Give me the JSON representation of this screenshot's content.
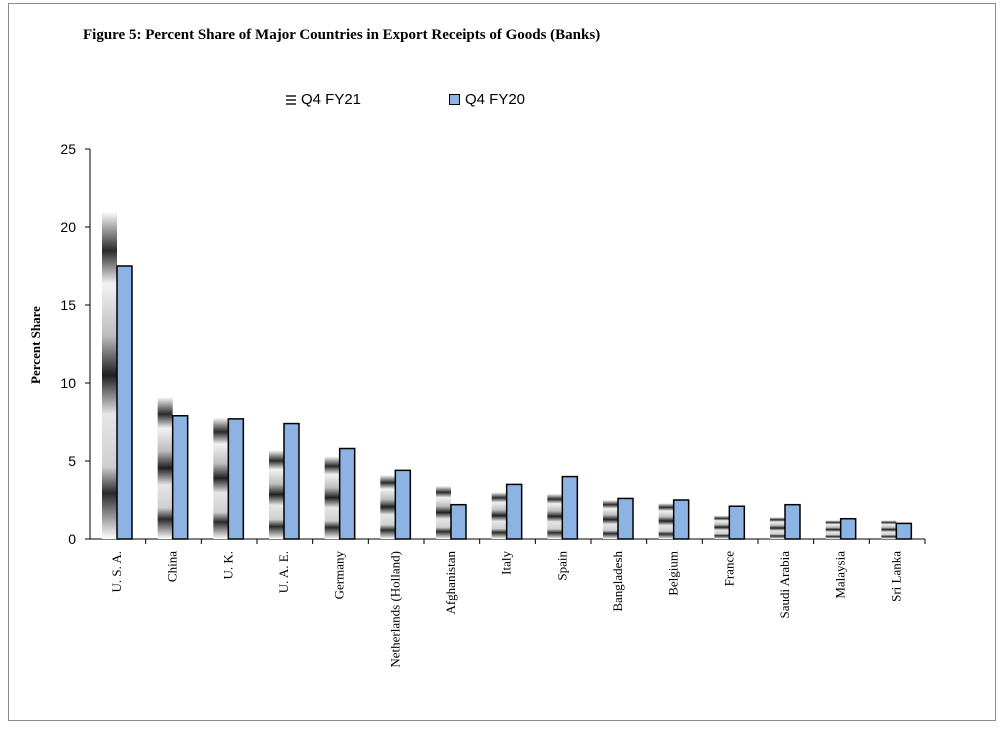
{
  "chart_data": {
    "type": "bar",
    "title": "Figure 5: Percent Share of Major Countries in Export Receipts of Goods  (Banks)",
    "xlabel": "",
    "ylabel": "Percent Share",
    "ylim": [
      0,
      25
    ],
    "yticks": [
      0,
      5,
      10,
      15,
      20,
      25
    ],
    "grid": false,
    "legend_position": "top",
    "categories": [
      "U. S. A.",
      "China",
      "U. K.",
      "U. A. E.",
      "Germany",
      "Netherlands (Holland)",
      "Afghanistan",
      "Italy",
      "Spain",
      "Bangladesh",
      "Belgium",
      "France",
      "Saudi Arabia",
      "Malaysia",
      "Sri Lanka"
    ],
    "series": [
      {
        "name": "Q4 FY21",
        "color": "#9a9a9a",
        "pattern": "gradient-bands",
        "values": [
          21.0,
          9.1,
          7.8,
          5.7,
          5.3,
          4.1,
          3.4,
          3.0,
          2.9,
          2.5,
          2.3,
          1.5,
          1.4,
          1.2,
          1.2
        ]
      },
      {
        "name": "Q4 FY20",
        "color": "#8db3e2",
        "values": [
          17.5,
          7.9,
          7.7,
          7.4,
          5.8,
          4.4,
          2.2,
          3.5,
          4.0,
          2.6,
          2.5,
          2.1,
          2.2,
          1.3,
          1.0
        ]
      }
    ]
  }
}
